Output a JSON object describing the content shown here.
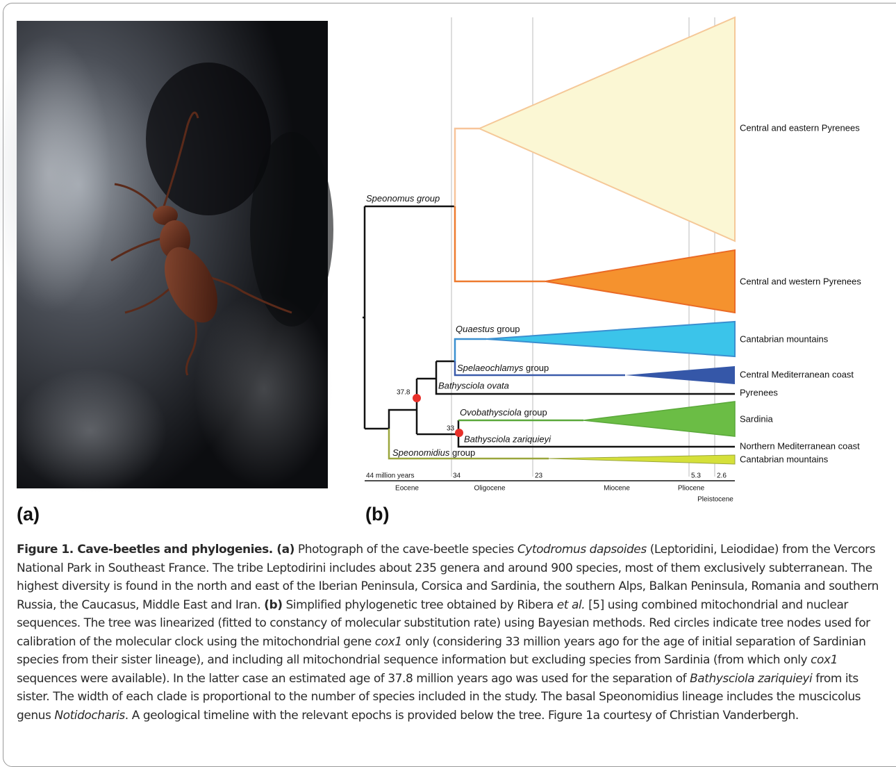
{
  "panel_labels": [
    "(a)",
    "(b)"
  ],
  "tree": {
    "groups": [
      {
        "taxon": "Speonomus",
        "rank": "group"
      },
      {
        "taxon": "Quaestus",
        "rank": "group"
      },
      {
        "taxon": "Spelaeochlamys",
        "rank": "group"
      },
      {
        "taxon": "Ovobathysciola",
        "rank": "group"
      },
      {
        "taxon": "Speonomidius",
        "rank": "group"
      }
    ],
    "species": [
      "Bathysciola ovata",
      "Bathysciola zariquieyi"
    ],
    "nodes": [
      "37.8",
      "33"
    ],
    "regions": [
      "Central and eastern Pyrenees",
      "Central and western Pyrenees",
      "Cantabrian mountains",
      "Central Mediterranean coast",
      "Pyrenees",
      "Sardinia",
      "Northern Mediterranean coast",
      "Cantabrian mountains"
    ],
    "timeline": {
      "ticks": [
        "44 million years",
        "34",
        "23",
        "5.3",
        "2.6"
      ],
      "epochs": [
        "Eocene",
        "Oligocene",
        "Miocene",
        "Pliocene",
        "Pleistocene"
      ]
    }
  },
  "caption": [
    "Figure 1. Cave-beetles and phylogenies.",
    " (a)",
    " Photograph of the cave-beetle species ",
    "Cytodromus dapsoides",
    " (Leptoridini, Leiodidae) from the Vercors National Park in Southeast France. The tribe Leptodirini includes about 235 genera and around 900 species, most of them exclusively subterranean. The highest diversity is found in the north and east of the Iberian Peninsula, Corsica and Sardinia, the southern Alps, Balkan Peninsula, Romania and southern Russia, the Caucasus, Middle East and Iran. ",
    "(b)",
    " Simplified phylogenetic tree obtained by Ribera ",
    "et al.",
    " [5] using combined mitochondrial and nuclear sequences. The tree was linearized (fitted to constancy of molecular substitution rate) using Bayesian methods. Red circles indicate tree nodes used for calibration of the molecular clock using the mitochondrial gene ",
    "cox1",
    " only (considering 33 million years ago for the age of initial separation of Sardinian species from their sister lineage), and including all mitochondrial sequence information but excluding species from Sardinia (from which only ",
    "cox1",
    " sequences were available). In the latter case an estimated age of 37.8 million years ago was used for the separation of ",
    "Bathysciola zariquieyi",
    " from its sister. The width of each clade is proportional to the number of species included in the study. The basal Speonomidius lineage includes the muscicolus genus ",
    "Notidocharis",
    ". A geological timeline with the relevant epochs is provided below the tree. Figure 1a courtesy of Christian Vanderbergh."
  ]
}
